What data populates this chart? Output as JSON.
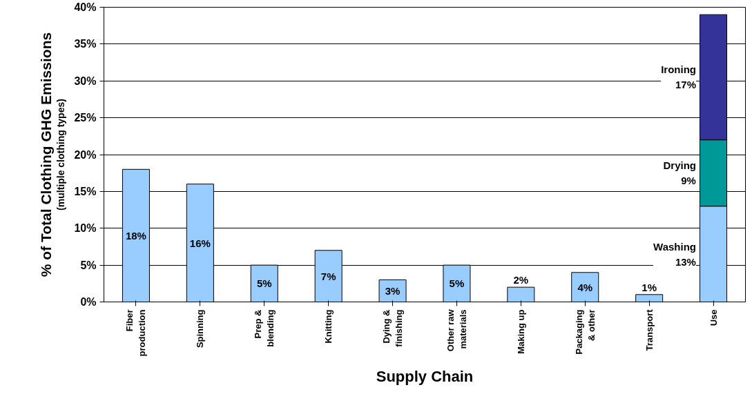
{
  "chart_data": {
    "type": "bar",
    "stacked": true,
    "xlabel": "Supply Chain",
    "ylabel": "% of Total Clothing GHG Emissions",
    "annotations": [
      "(multiple clothing types)",
      "Washing\n13%",
      "Drying\n9%",
      "Ironing\n17%"
    ],
    "categories": [
      "Fiber production",
      "Spinning",
      "Prep & blending",
      "Knitting",
      "Dying & finishing",
      "Other raw materials",
      "Making up",
      "Packaging & other",
      "Transport",
      "Use"
    ],
    "series": [
      {
        "color": "#99ccff",
        "values": [
          18,
          16,
          5,
          7,
          3,
          5,
          2,
          4,
          1,
          13
        ],
        "value_labels": [
          "18%",
          "16%",
          "5%",
          "7%",
          "3%",
          "5%",
          "2%",
          "4%",
          "1%",
          null
        ]
      },
      {
        "color": "#009999",
        "values": [
          null,
          null,
          null,
          null,
          null,
          null,
          null,
          null,
          null,
          9
        ]
      },
      {
        "color": "#333399",
        "values": [
          null,
          null,
          null,
          null,
          null,
          null,
          null,
          null,
          null,
          17
        ]
      }
    ],
    "ylim": [
      0,
      40
    ],
    "yticks": [
      {
        "value": 0,
        "label": "0%"
      },
      {
        "value": 5,
        "label": "5%"
      },
      {
        "value": 10,
        "label": "10%"
      },
      {
        "value": 15,
        "label": "15%"
      },
      {
        "value": 20,
        "label": "20%"
      },
      {
        "value": 25,
        "label": "25%"
      },
      {
        "value": 30,
        "label": "30%"
      },
      {
        "value": 35,
        "label": "35%"
      },
      {
        "value": 40,
        "label": "40%"
      }
    ],
    "grid": "y"
  }
}
